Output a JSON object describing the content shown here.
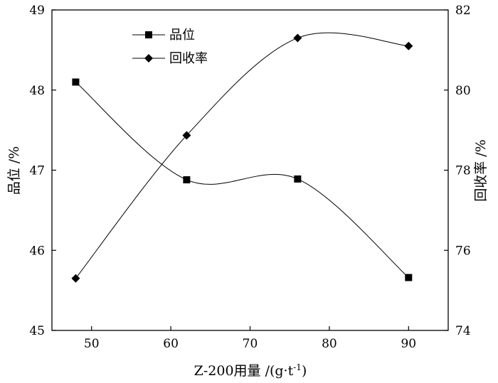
{
  "chart_data": {
    "type": "line",
    "x": [
      48,
      62,
      76,
      90
    ],
    "xlabel": "Z-200用量 /(g·t",
    "xlabel_sup": "-1",
    "xlabel_tail": ")",
    "xlim": [
      45,
      95
    ],
    "xticks": [
      "50",
      "60",
      "70",
      "80",
      "90"
    ],
    "ylabel_left": "品位 /%",
    "ylim_left": [
      45,
      49
    ],
    "yticks_left": [
      "45",
      "46",
      "47",
      "48",
      "49"
    ],
    "ylabel_right": "回收率 /%",
    "ylim_right": [
      74,
      82
    ],
    "yticks_right": [
      "74",
      "76",
      "78",
      "80",
      "82"
    ],
    "series": [
      {
        "name": "品位",
        "axis": "left",
        "marker": "square",
        "values": [
          48.1,
          46.88,
          46.89,
          45.66
        ]
      },
      {
        "name": "回收率",
        "axis": "right",
        "marker": "diamond",
        "values": [
          75.3,
          78.87,
          81.3,
          81.1
        ]
      }
    ],
    "legend_position": "top-left",
    "grid": false
  }
}
